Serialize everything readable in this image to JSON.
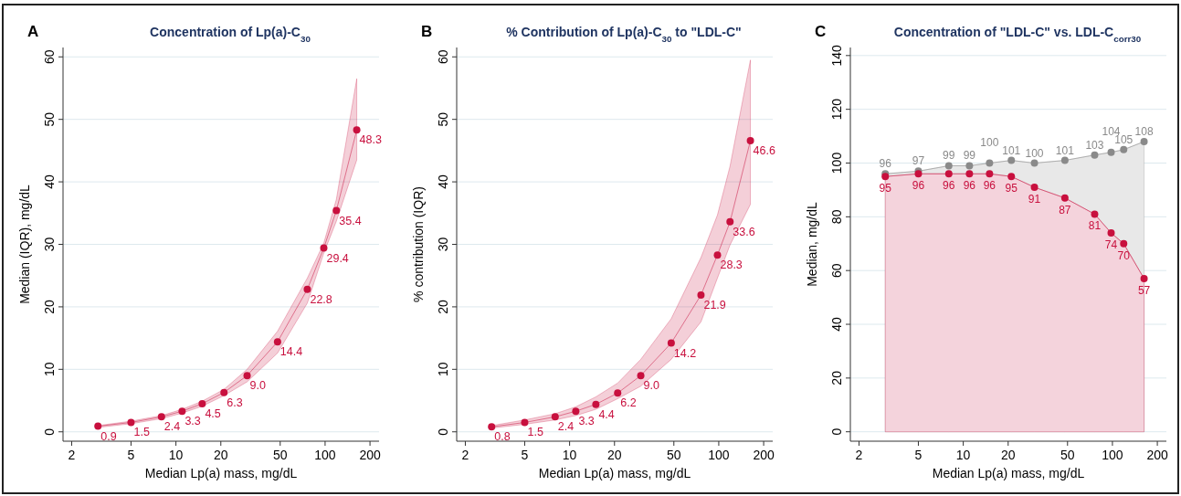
{
  "chart_data": [
    {
      "type": "line",
      "title": "Concentration of  Lp(a)-C$_{30}$",
      "annotations": [
        "A"
      ],
      "xlabel": "Median Lp(a) mass, mg/dL",
      "ylabel": "Median (IQR), mg/dL",
      "log": "x",
      "xlim": [
        1.75,
        230
      ],
      "xticks": [
        2,
        5,
        10,
        20,
        50,
        100,
        200
      ],
      "ylim": [
        -1.5,
        61.5
      ],
      "yticks": [
        0,
        10,
        20,
        30,
        40,
        50,
        60
      ],
      "grid": "y",
      "marker": "circle",
      "x": [
        3,
        5,
        8,
        11,
        15,
        21,
        30,
        48,
        76,
        98,
        119,
        163
      ],
      "series": [
        {
          "color": "#c8103e",
          "values": [
            0.9,
            1.5,
            2.4,
            3.3,
            4.5,
            6.3,
            9.0,
            14.4,
            22.8,
            29.4,
            35.4,
            48.3
          ],
          "value_labels": [
            "0.9",
            "1.5",
            "2.4",
            "3.3",
            "4.5",
            "6.3",
            "9.0",
            "14.4",
            "22.8",
            "29.4",
            "35.4",
            "48.3"
          ],
          "lower": [
            0.7,
            1.3,
            2.1,
            3.0,
            4.1,
            5.8,
            8.0,
            12.6,
            20.6,
            28.6,
            33.7,
            43.5
          ],
          "upper": [
            1.0,
            1.7,
            2.6,
            3.6,
            4.9,
            6.8,
            10.0,
            16.1,
            24.6,
            30.2,
            37.2,
            56.5
          ]
        }
      ]
    },
    {
      "type": "line",
      "title": "% Contribution of  Lp(a)-C$_{30}$ to \"LDL-C\"",
      "annotations": [
        "B"
      ],
      "xlabel": "Median Lp(a) mass, mg/dL",
      "ylabel": "% contribution (IQR)",
      "log": "x",
      "xlim": [
        1.75,
        230
      ],
      "xticks": [
        2,
        5,
        10,
        20,
        50,
        100,
        200
      ],
      "ylim": [
        -1.5,
        61.5
      ],
      "yticks": [
        0,
        10,
        20,
        30,
        40,
        50,
        60
      ],
      "grid": "y",
      "marker": "circle",
      "x": [
        3,
        5,
        8,
        11,
        15,
        21,
        30,
        48,
        76,
        98,
        119,
        163
      ],
      "series": [
        {
          "color": "#c8103e",
          "values": [
            0.8,
            1.5,
            2.4,
            3.3,
            4.4,
            6.2,
            9.0,
            14.2,
            21.9,
            28.3,
            33.6,
            46.6
          ],
          "value_labels": [
            "0.8",
            "1.5",
            "2.4",
            "3.3",
            "4.4",
            "6.2",
            "9.0",
            "14.2",
            "21.9",
            "28.3",
            "33.6",
            "46.6"
          ],
          "lower": [
            0.6,
            1.2,
            1.9,
            2.6,
            3.6,
            5.3,
            7.3,
            11.6,
            17.6,
            24.6,
            29.9,
            36.4
          ],
          "upper": [
            1.0,
            1.9,
            2.9,
            4.0,
            5.6,
            7.8,
            11.6,
            18.1,
            27.9,
            34.7,
            42.5,
            59.5
          ]
        }
      ]
    },
    {
      "type": "area",
      "title": "Concentration of \"LDL-C\" vs. LDL-C$_{corr30}$",
      "annotations": [
        "C"
      ],
      "xlabel": "Median Lp(a) mass, mg/dL",
      "ylabel": "Median, mg/dL",
      "log": "x",
      "xlim": [
        1.75,
        230
      ],
      "xticks": [
        2,
        5,
        10,
        20,
        50,
        100,
        200
      ],
      "ylim": [
        -3.5,
        143
      ],
      "yticks": [
        0,
        20,
        40,
        60,
        80,
        100,
        120,
        140
      ],
      "grid": "y",
      "marker": "circle",
      "data_labels": true,
      "x": [
        3,
        5,
        8,
        11,
        15,
        21,
        30,
        48,
        76,
        98,
        119,
        163
      ],
      "series": [
        {
          "color": "#8a8a8a",
          "values": [
            96,
            97,
            99,
            99,
            100,
            101,
            100,
            101,
            103,
            104,
            105,
            108
          ]
        },
        {
          "color": "#c8103e",
          "values": [
            95,
            96,
            96,
            96,
            96,
            95,
            91,
            87,
            81,
            74,
            70,
            57
          ]
        }
      ]
    }
  ]
}
